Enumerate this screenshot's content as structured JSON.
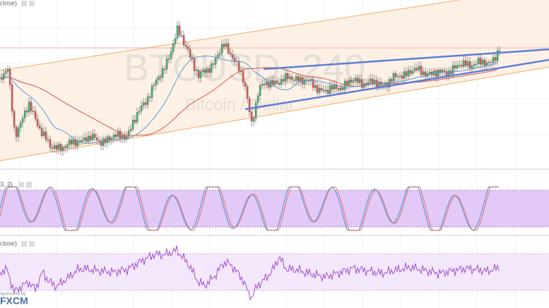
{
  "header": {
    "label": "close)"
  },
  "watermark": {
    "title": "BTCUSD, 240",
    "subtitle": "Bitcoin / Dollar"
  },
  "panels": [
    {
      "label": "3, 3)"
    },
    {
      "label": "close)"
    }
  ],
  "branding": {
    "note": "sponsored by",
    "logo": "FXCM"
  }
}
